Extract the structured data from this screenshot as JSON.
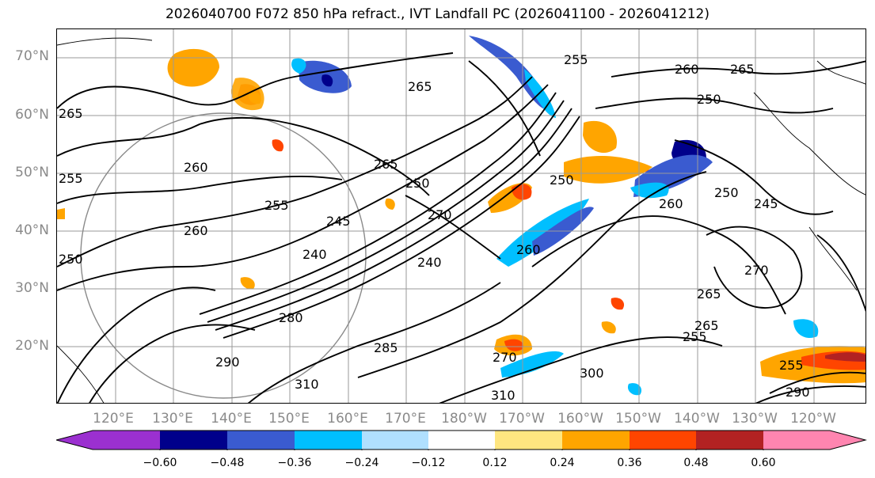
{
  "title": "2026040700 F072 850 hPa refract., IVT Landfall PC (2026041100 - 2026041212)",
  "lat_labels": [
    "70°N",
    "60°N",
    "50°N",
    "40°N",
    "30°N",
    "20°N"
  ],
  "lon_labels": [
    "120°E",
    "130°E",
    "140°E",
    "150°E",
    "160°E",
    "170°E",
    "180°W",
    "170°W",
    "160°W",
    "150°W",
    "140°W",
    "130°W",
    "120°W"
  ],
  "contour_labels": [
    "265",
    "265",
    "260",
    "255",
    "250",
    "260",
    "255",
    "265",
    "250",
    "245",
    "240",
    "270",
    "240",
    "265",
    "260",
    "250",
    "255",
    "260",
    "245",
    "270",
    "270",
    "265",
    "250",
    "285",
    "300",
    "310",
    "310",
    "255",
    "260",
    "265",
    "255",
    "280",
    "290",
    "250",
    "290"
  ],
  "colorbar": {
    "ticks": [
      "−0.60",
      "−0.48",
      "−0.36",
      "−0.24",
      "−0.12",
      "0.12",
      "0.24",
      "0.36",
      "0.48",
      "0.60"
    ],
    "colors": [
      "#9b30d0",
      "#00008b",
      "#3a5bd0",
      "#00bfff",
      "#b0e0ff",
      "#ffffff",
      "#ffe680",
      "#ffa500",
      "#ff4500",
      "#b22222",
      "#ff85b0"
    ]
  },
  "colors": {
    "grid": "#9a9a9a",
    "contour": "#000000",
    "axis_text": "#8a8a8a"
  }
}
